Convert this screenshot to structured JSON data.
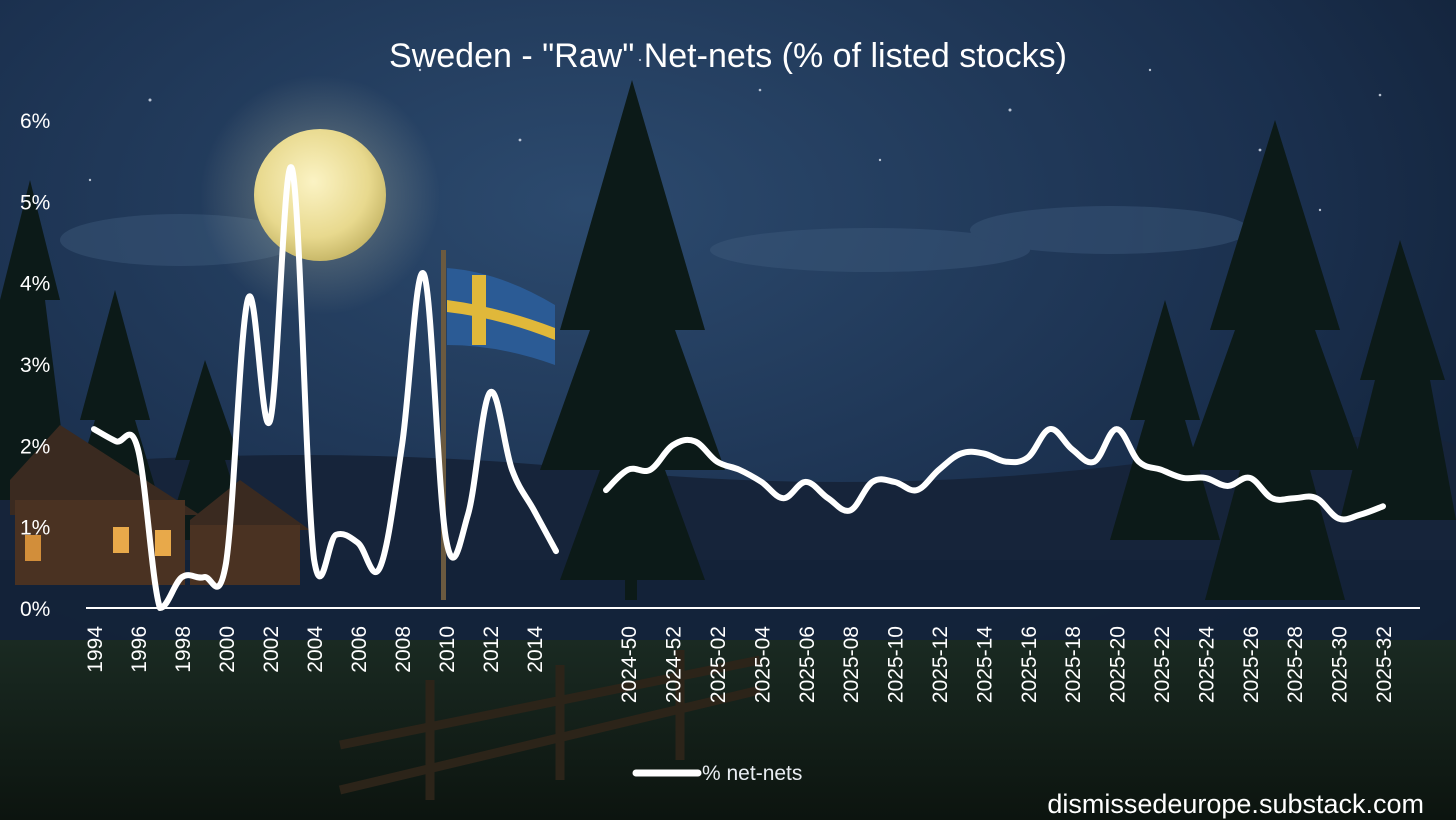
{
  "chart_data": {
    "type": "line",
    "title": "Sweden - \"Raw\" Net-nets (% of listed stocks)",
    "xlabel": "",
    "ylabel": "",
    "ylim": [
      0,
      6
    ],
    "yticks": [
      "0%",
      "1%",
      "2%",
      "3%",
      "4%",
      "5%",
      "6%"
    ],
    "grid": false,
    "legend_position": "bottom",
    "x_tick_labels": [
      "1994",
      "1996",
      "1998",
      "2000",
      "2002",
      "2004",
      "2006",
      "2008",
      "2010",
      "2012",
      "2014",
      "2024-50",
      "2024-52",
      "2025-02",
      "2025-04",
      "2025-06",
      "2025-08",
      "2025-10",
      "2025-12",
      "2025-14",
      "2025-16",
      "2025-18",
      "2025-20",
      "2025-22",
      "2025-24",
      "2025-26",
      "2025-28",
      "2025-30",
      "2025-32"
    ],
    "segments": [
      {
        "x": [
          "1994",
          "1995",
          "1996",
          "1997",
          "1998",
          "1999",
          "2000",
          "2001",
          "2002",
          "2003",
          "2004",
          "2005",
          "2006",
          "2007",
          "2008",
          "2009",
          "2010",
          "2011",
          "2012",
          "2013",
          "2014",
          "2015"
        ],
        "values": [
          2.2,
          2.05,
          1.95,
          0.0,
          0.38,
          0.38,
          0.55,
          3.8,
          2.3,
          5.4,
          0.6,
          0.9,
          0.8,
          0.5,
          2.0,
          4.1,
          0.85,
          1.15,
          2.65,
          1.7,
          1.2,
          0.7
        ]
      },
      {
        "x": [
          "2024-49",
          "2024-50",
          "2024-51",
          "2024-52",
          "2025-01",
          "2025-02",
          "2025-03",
          "2025-04",
          "2025-05",
          "2025-06",
          "2025-07",
          "2025-08",
          "2025-09",
          "2025-10",
          "2025-11",
          "2025-12",
          "2025-13",
          "2025-14",
          "2025-15",
          "2025-16",
          "2025-17",
          "2025-18",
          "2025-19",
          "2025-20",
          "2025-21",
          "2025-22",
          "2025-23",
          "2025-24",
          "2025-25",
          "2025-26",
          "2025-27",
          "2025-28",
          "2025-29",
          "2025-30",
          "2025-31",
          "2025-32"
        ],
        "values": [
          1.45,
          1.7,
          1.7,
          2.0,
          2.05,
          1.8,
          1.7,
          1.55,
          1.35,
          1.55,
          1.35,
          1.2,
          1.55,
          1.55,
          1.45,
          1.7,
          1.9,
          1.9,
          1.8,
          1.85,
          2.2,
          1.95,
          1.8,
          2.2,
          1.8,
          1.7,
          1.6,
          1.6,
          1.5,
          1.6,
          1.35,
          1.35,
          1.35,
          1.1,
          1.15,
          1.25
        ]
      }
    ],
    "series": [
      {
        "name": "% net-nets",
        "color": "#ffffff"
      }
    ],
    "watermark": "dismissedeurope.substack.com"
  }
}
